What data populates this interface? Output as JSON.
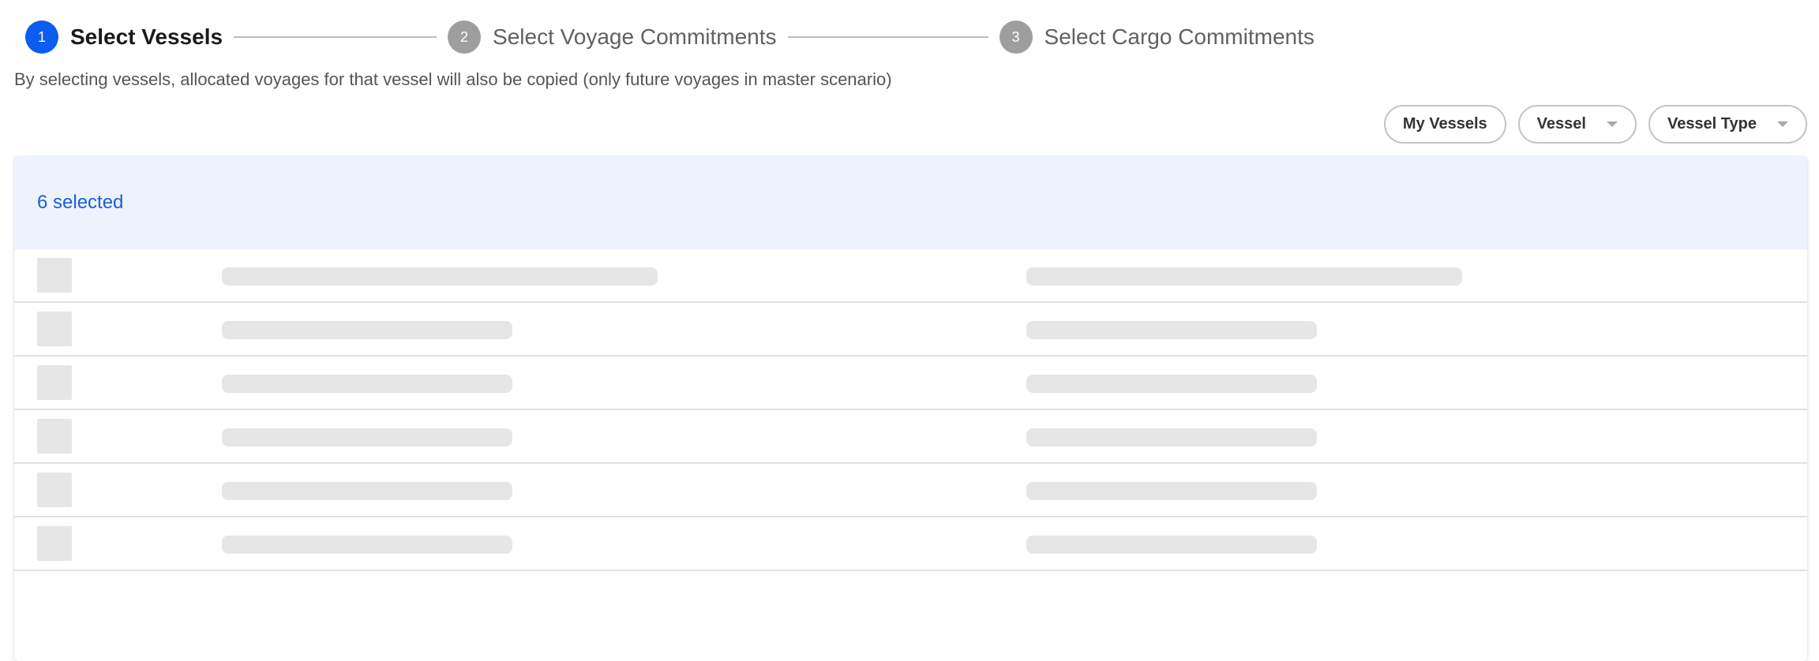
{
  "stepper": {
    "steps": [
      {
        "number": "1",
        "label": "Select Vessels",
        "active": true
      },
      {
        "number": "2",
        "label": "Select Voyage Commitments",
        "active": false
      },
      {
        "number": "3",
        "label": "Select Cargo Commitments",
        "active": false
      }
    ]
  },
  "subtitle": "By selecting vessels, allocated voyages for that vessel will also be copied (only future voyages in master scenario)",
  "filters": {
    "my_vessels": "My Vessels",
    "vessel": "Vessel",
    "vessel_type": "Vessel Type"
  },
  "table": {
    "selected_text": "6 selected",
    "loading_rows": 6
  },
  "colors": {
    "accent": "#0b5cf0",
    "selected_bg": "#edf2fd",
    "selected_text": "#1a5fd6"
  }
}
